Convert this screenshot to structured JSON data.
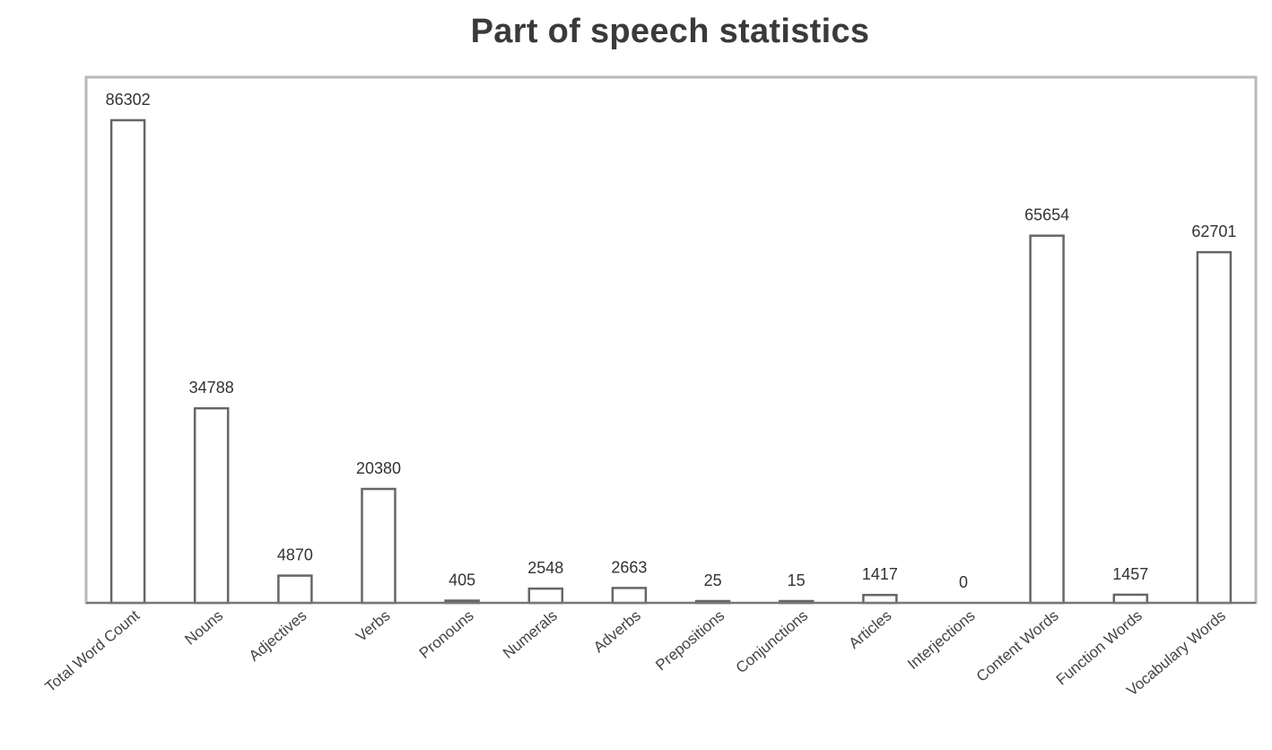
{
  "chart_data": {
    "type": "bar",
    "title": "Part of speech statistics",
    "xlabel": "",
    "ylabel": "",
    "ylim": [
      0,
      94000
    ],
    "grid": false,
    "legend": "none",
    "bar_fill": "#ffffff",
    "bar_stroke": "#666666",
    "categories": [
      "Total Word Count",
      "Nouns",
      "Adjectives",
      "Verbs",
      "Pronouns",
      "Numerals",
      "Adverbs",
      "Prepositions",
      "Conjunctions",
      "Articles",
      "Interjections",
      "Content Words",
      "Function Words",
      "Vocabulary Words"
    ],
    "values": [
      86302,
      34788,
      4870,
      20380,
      405,
      2548,
      2663,
      25,
      15,
      1417,
      0,
      65654,
      1457,
      62701
    ]
  }
}
